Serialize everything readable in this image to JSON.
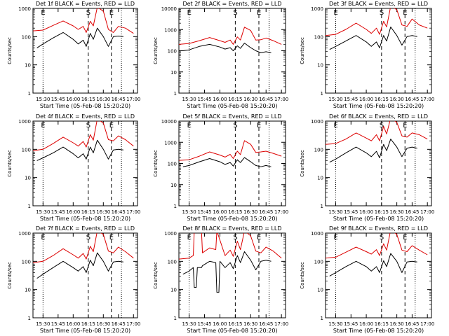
{
  "figure": {
    "xlabel": "Start Time (05-Feb-08 15:20:20)",
    "ylabel": "Counts/sec"
  },
  "colors": {
    "events": "#000000",
    "lld": "#dd0000",
    "axes": "#000000"
  },
  "chart_data": [
    {
      "type": "line",
      "detector": "1f",
      "title": "Det 1f BLACK = Events, RED = LLD",
      "flags": [
        "E",
        "S",
        "E"
      ],
      "x_ticks": [
        "15:30",
        "15:45",
        "16:00",
        "16:15",
        "16:30",
        "16:45",
        "17:00"
      ],
      "y_ticks": [
        "1",
        "10",
        "100",
        "1000"
      ],
      "ylim": [
        1,
        1000
      ],
      "log_y": true,
      "x_range": [
        "15:20",
        "17:04"
      ],
      "series": [
        {
          "name": "RED = LLD",
          "x": [
            "15:20",
            "15:30",
            "15:40",
            "15:50",
            "16:00",
            "16:05",
            "16:10",
            "16:13",
            "16:17",
            "16:20",
            "16:24",
            "16:30",
            "16:35",
            "16:40",
            "16:45",
            "16:52",
            "17:00"
          ],
          "y": [
            160,
            170,
            250,
            360,
            240,
            180,
            230,
            140,
            350,
            240,
            1100,
            800,
            180,
            140,
            230,
            200,
            130
          ]
        },
        {
          "name": "BLACK = Events",
          "x": [
            "15:24",
            "15:30",
            "15:40",
            "15:50",
            "16:00",
            "16:05",
            "16:10",
            "16:13",
            "16:17",
            "16:20",
            "16:24",
            "16:30",
            "16:35",
            "16:40",
            "16:45",
            "16:50"
          ],
          "y": [
            40,
            55,
            90,
            140,
            80,
            55,
            75,
            45,
            130,
            80,
            200,
            100,
            45,
            100,
            105,
            100
          ]
        }
      ]
    },
    {
      "type": "line",
      "detector": "2f",
      "title": "Det 2f BLACK = Events, RED = LLD",
      "flags": [
        "E",
        "S",
        "E"
      ],
      "x_ticks": [
        "15:30",
        "15:45",
        "16:00",
        "16:15",
        "16:30",
        "16:45",
        "17:00"
      ],
      "y_ticks": [
        "1",
        "10",
        "100",
        "1000",
        "10000"
      ],
      "ylim": [
        1,
        10000
      ],
      "log_y": true,
      "x_range": [
        "15:20",
        "17:04"
      ],
      "series": [
        {
          "name": "RED = LLD",
          "x": [
            "15:20",
            "15:30",
            "15:40",
            "15:50",
            "16:00",
            "16:05",
            "16:10",
            "16:13",
            "16:17",
            "16:20",
            "16:24",
            "16:30",
            "16:35",
            "16:40",
            "16:45",
            "16:52",
            "17:00"
          ],
          "y": [
            200,
            220,
            300,
            420,
            300,
            250,
            320,
            200,
            450,
            320,
            1300,
            900,
            320,
            330,
            400,
            300,
            200
          ]
        },
        {
          "name": "BLACK = Events",
          "x": [
            "15:24",
            "15:30",
            "15:40",
            "15:50",
            "16:00",
            "16:05",
            "16:10",
            "16:13",
            "16:17",
            "16:20",
            "16:24",
            "16:30",
            "16:35",
            "16:40",
            "16:45",
            "16:50"
          ],
          "y": [
            100,
            110,
            160,
            200,
            150,
            120,
            140,
            100,
            170,
            130,
            230,
            140,
            100,
            80,
            90,
            80
          ]
        }
      ]
    },
    {
      "type": "line",
      "detector": "3f",
      "title": "Det 3f BLACK = Events, RED = LLD",
      "flags": [
        "E",
        "S",
        "E"
      ],
      "x_ticks": [
        "15:30",
        "15:45",
        "16:00",
        "16:15",
        "16:30",
        "16:45",
        "17:00"
      ],
      "y_ticks": [
        "1",
        "10",
        "100",
        "1000"
      ],
      "ylim": [
        1,
        1000
      ],
      "log_y": true,
      "x_range": [
        "15:20",
        "17:04"
      ],
      "series": [
        {
          "name": "RED = LLD",
          "x": [
            "15:20",
            "15:30",
            "15:40",
            "15:50",
            "16:00",
            "16:05",
            "16:10",
            "16:13",
            "16:17",
            "16:20",
            "16:24",
            "16:30",
            "16:35",
            "16:40",
            "16:45",
            "16:52",
            "17:00"
          ],
          "y": [
            110,
            120,
            180,
            300,
            180,
            130,
            200,
            120,
            350,
            220,
            1200,
            900,
            260,
            230,
            420,
            260,
            200
          ]
        },
        {
          "name": "BLACK = Events",
          "x": [
            "15:24",
            "15:30",
            "15:40",
            "15:50",
            "16:00",
            "16:05",
            "16:10",
            "16:13",
            "16:17",
            "16:20",
            "16:24",
            "16:30",
            "16:35",
            "16:40",
            "16:45",
            "16:50"
          ],
          "y": [
            35,
            45,
            70,
            110,
            65,
            45,
            65,
            40,
            110,
            70,
            220,
            110,
            50,
            100,
            110,
            100
          ]
        }
      ]
    },
    {
      "type": "line",
      "detector": "4f",
      "title": "Det 4f BLACK = Events, RED = LLD",
      "flags": [
        "E",
        "S",
        "E"
      ],
      "x_ticks": [
        "15:30",
        "15:45",
        "16:00",
        "16:15",
        "16:30",
        "16:45",
        "17:00"
      ],
      "y_ticks": [
        "1",
        "10",
        "100",
        "1000"
      ],
      "ylim": [
        1,
        1000
      ],
      "log_y": true,
      "x_range": [
        "15:20",
        "17:04"
      ],
      "series": [
        {
          "name": "RED = LLD",
          "x": [
            "15:20",
            "15:30",
            "15:40",
            "15:50",
            "16:00",
            "16:05",
            "16:10",
            "16:13",
            "16:17",
            "16:20",
            "16:24",
            "16:30",
            "16:35",
            "16:40",
            "16:45",
            "16:52",
            "17:00"
          ],
          "y": [
            90,
            100,
            160,
            270,
            170,
            130,
            190,
            120,
            330,
            210,
            1200,
            850,
            220,
            200,
            300,
            220,
            130
          ]
        },
        {
          "name": "BLACK = Events",
          "x": [
            "15:24",
            "15:30",
            "15:40",
            "15:50",
            "16:00",
            "16:05",
            "16:10",
            "16:13",
            "16:17",
            "16:20",
            "16:24",
            "16:30",
            "16:35",
            "16:40",
            "16:45",
            "16:50"
          ],
          "y": [
            40,
            50,
            75,
            120,
            70,
            50,
            70,
            45,
            120,
            75,
            210,
            100,
            45,
            95,
            100,
            95
          ]
        }
      ]
    },
    {
      "type": "line",
      "detector": "5f",
      "title": "Det 5f BLACK = Events, RED = LLD",
      "flags": [
        "E",
        "S",
        "E"
      ],
      "x_ticks": [
        "15:30",
        "15:45",
        "16:00",
        "16:15",
        "16:30",
        "16:45",
        "17:00"
      ],
      "y_ticks": [
        "1",
        "10",
        "100",
        "1000",
        "10000"
      ],
      "ylim": [
        1,
        10000
      ],
      "log_y": true,
      "x_range": [
        "15:20",
        "17:04"
      ],
      "series": [
        {
          "name": "RED = LLD",
          "x": [
            "15:20",
            "15:30",
            "15:40",
            "15:50",
            "16:00",
            "16:05",
            "16:10",
            "16:13",
            "16:17",
            "16:20",
            "16:24",
            "16:30",
            "16:35",
            "16:40",
            "16:45",
            "16:52",
            "17:00"
          ],
          "y": [
            140,
            150,
            220,
            350,
            250,
            200,
            270,
            170,
            380,
            260,
            1200,
            800,
            330,
            350,
            380,
            300,
            220
          ]
        },
        {
          "name": "BLACK = Events",
          "x": [
            "15:24",
            "15:30",
            "15:40",
            "15:50",
            "16:00",
            "16:05",
            "16:10",
            "16:13",
            "16:17",
            "16:20",
            "16:24",
            "16:30",
            "16:35",
            "16:40",
            "16:45",
            "16:50"
          ],
          "y": [
            70,
            80,
            120,
            170,
            120,
            90,
            110,
            75,
            150,
            110,
            190,
            120,
            80,
            70,
            80,
            70
          ]
        }
      ]
    },
    {
      "type": "line",
      "detector": "6f",
      "title": "Det 6f BLACK = Events, RED = LLD",
      "flags": [
        "E",
        "S",
        "E"
      ],
      "x_ticks": [
        "15:30",
        "15:45",
        "16:00",
        "16:15",
        "16:30",
        "16:45",
        "17:00"
      ],
      "y_ticks": [
        "1",
        "10",
        "100",
        "1000"
      ],
      "ylim": [
        1,
        1000
      ],
      "log_y": true,
      "x_range": [
        "15:20",
        "17:04"
      ],
      "series": [
        {
          "name": "RED = LLD",
          "x": [
            "15:20",
            "15:30",
            "15:40",
            "15:50",
            "16:00",
            "16:05",
            "16:10",
            "16:13",
            "16:17",
            "16:20",
            "16:24",
            "16:30",
            "16:35",
            "16:40",
            "16:45",
            "16:52",
            "17:00"
          ],
          "y": [
            150,
            160,
            230,
            380,
            250,
            200,
            330,
            200,
            650,
            350,
            1300,
            900,
            300,
            270,
            380,
            330,
            230
          ]
        },
        {
          "name": "BLACK = Events",
          "x": [
            "15:24",
            "15:30",
            "15:40",
            "15:50",
            "16:00",
            "16:05",
            "16:10",
            "16:13",
            "16:17",
            "16:20",
            "16:24",
            "16:30",
            "16:35",
            "16:40",
            "16:45",
            "16:50"
          ],
          "y": [
            35,
            45,
            75,
            120,
            75,
            55,
            85,
            50,
            150,
            90,
            230,
            120,
            55,
            110,
            120,
            110
          ]
        }
      ]
    },
    {
      "type": "line",
      "detector": "7f",
      "title": "Det 7f BLACK = Events, RED = LLD",
      "flags": [
        "E",
        "S",
        "E"
      ],
      "x_ticks": [
        "15:30",
        "15:45",
        "16:00",
        "16:15",
        "16:30",
        "16:45",
        "17:00"
      ],
      "y_ticks": [
        "1",
        "10",
        "100",
        "1000"
      ],
      "ylim": [
        1,
        1000
      ],
      "log_y": true,
      "x_range": [
        "15:20",
        "17:04"
      ],
      "series": [
        {
          "name": "RED = LLD",
          "x": [
            "15:20",
            "15:30",
            "15:40",
            "15:50",
            "16:00",
            "16:05",
            "16:10",
            "16:13",
            "16:17",
            "16:20",
            "16:24",
            "16:30",
            "16:35",
            "16:40",
            "16:45",
            "16:52",
            "17:00"
          ],
          "y": [
            90,
            100,
            160,
            280,
            170,
            130,
            190,
            120,
            340,
            220,
            1200,
            900,
            230,
            200,
            320,
            220,
            130
          ]
        },
        {
          "name": "BLACK = Events",
          "x": [
            "15:24",
            "15:30",
            "15:40",
            "15:50",
            "16:00",
            "16:05",
            "16:10",
            "16:13",
            "16:17",
            "16:20",
            "16:24",
            "16:30",
            "16:35",
            "16:40",
            "16:45",
            "16:50"
          ],
          "y": [
            25,
            35,
            60,
            100,
            60,
            45,
            65,
            40,
            110,
            70,
            200,
            100,
            45,
            95,
            100,
            95
          ]
        }
      ]
    },
    {
      "type": "line",
      "detector": "8f",
      "title": "Det 8f BLACK = Events, RED = LLD",
      "flags": [
        "E",
        "S",
        "E"
      ],
      "x_ticks": [
        "15:30",
        "15:45",
        "16:00",
        "16:15",
        "16:30",
        "16:45",
        "17:00"
      ],
      "y_ticks": [
        "1",
        "10",
        "100",
        "1000"
      ],
      "ylim": [
        1,
        1000
      ],
      "log_y": true,
      "x_range": [
        "15:20",
        "17:04"
      ],
      "series": [
        {
          "name": "RED = LLD",
          "x": [
            "15:20",
            "15:30",
            "15:34",
            "15:35",
            "15:42",
            "15:43",
            "15:50",
            "15:56",
            "15:57",
            "16:05",
            "16:10",
            "16:13",
            "16:17",
            "16:20",
            "16:24",
            "16:30",
            "16:35",
            "16:40",
            "16:45",
            "16:52",
            "17:00"
          ],
          "y": [
            120,
            130,
            160,
            1200,
            1200,
            200,
            300,
            260,
            1200,
            160,
            250,
            150,
            520,
            260,
            1200,
            800,
            230,
            200,
            320,
            230,
            130
          ]
        },
        {
          "name": "BLACK = Events",
          "x": [
            "15:24",
            "15:30",
            "15:34",
            "15:35",
            "15:37",
            "15:38",
            "15:42",
            "15:43",
            "15:50",
            "15:56",
            "15:57",
            "15:59",
            "16:00",
            "16:05",
            "16:10",
            "16:13",
            "16:17",
            "16:20",
            "16:24",
            "16:30",
            "16:35",
            "16:40",
            "16:45",
            "16:50"
          ],
          "y": [
            35,
            45,
            60,
            12,
            12,
            60,
            60,
            70,
            100,
            90,
            8,
            8,
            100,
            60,
            90,
            55,
            160,
            90,
            220,
            110,
            50,
            100,
            110,
            100
          ]
        }
      ]
    },
    {
      "type": "line",
      "detector": "9f",
      "title": "Det 9f BLACK = Events, RED = LLD",
      "flags": [
        "E",
        "S",
        "E"
      ],
      "x_ticks": [
        "15:30",
        "15:45",
        "16:00",
        "16:15",
        "16:30",
        "16:45",
        "17:00"
      ],
      "y_ticks": [
        "1",
        "10",
        "100",
        "1000"
      ],
      "ylim": [
        1,
        1000
      ],
      "log_y": true,
      "x_range": [
        "15:20",
        "17:04"
      ],
      "series": [
        {
          "name": "RED = LLD",
          "x": [
            "15:20",
            "15:30",
            "15:40",
            "15:50",
            "16:00",
            "16:05",
            "16:10",
            "16:13",
            "16:17",
            "16:20",
            "16:24",
            "16:30",
            "16:35",
            "16:40",
            "16:45",
            "16:52",
            "17:00"
          ],
          "y": [
            130,
            140,
            210,
            320,
            220,
            180,
            260,
            160,
            420,
            250,
            1300,
            900,
            250,
            220,
            360,
            250,
            170
          ]
        },
        {
          "name": "BLACK = Events",
          "x": [
            "15:24",
            "15:30",
            "15:40",
            "15:50",
            "16:00",
            "16:05",
            "16:10",
            "16:13",
            "16:17",
            "16:20",
            "16:24",
            "16:30",
            "16:35",
            "16:40",
            "16:45",
            "16:50"
          ],
          "y": [
            30,
            40,
            65,
            100,
            65,
            45,
            65,
            40,
            105,
            65,
            190,
            100,
            40,
            95,
            100,
            95
          ]
        }
      ]
    }
  ],
  "markers": {
    "dotted_times": [
      "15:30",
      "16:48"
    ],
    "dashed_times": [
      "16:15",
      "16:38"
    ]
  }
}
